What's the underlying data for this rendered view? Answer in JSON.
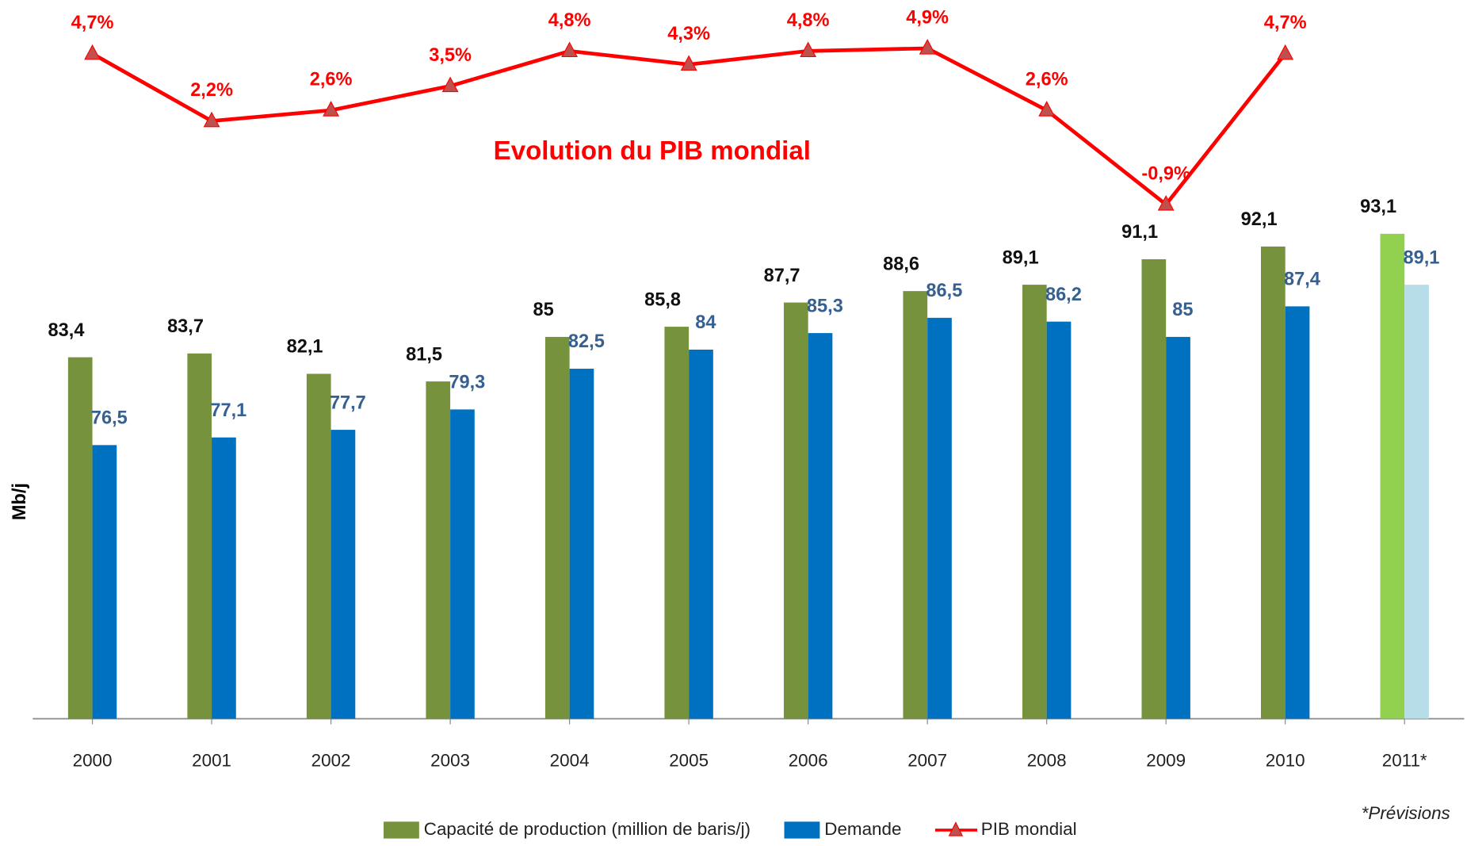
{
  "chart_data": {
    "type": "bar_line",
    "annotation_title": "Evolution du PIB mondial",
    "y_axis_label": "Mb/j",
    "footnote": "*Prévisions",
    "categories": [
      "2000",
      "2001",
      "2002",
      "2003",
      "2004",
      "2005",
      "2006",
      "2007",
      "2008",
      "2009",
      "2010",
      "2011*"
    ],
    "ylim": [
      55,
      110
    ],
    "y2lim": [
      -20,
      6
    ],
    "legend": "bottom",
    "series": [
      {
        "name": "Capacité de production (million de baris/j)",
        "type": "bar",
        "color": "#76923c",
        "point_colors": [
          "#76923c",
          "#76923c",
          "#76923c",
          "#76923c",
          "#76923c",
          "#76923c",
          "#76923c",
          "#76923c",
          "#76923c",
          "#76923c",
          "#76923c",
          "#92d050"
        ],
        "label_color": "#111111",
        "values": [
          83.4,
          83.7,
          82.1,
          81.5,
          85,
          85.8,
          87.7,
          88.6,
          89.1,
          91.1,
          92.1,
          93.1
        ],
        "value_labels": [
          "83,4",
          "83,7",
          "82,1",
          "81,5",
          "85",
          "85,8",
          "87,7",
          "88,6",
          "89,1",
          "91,1",
          "92,1",
          "93,1"
        ]
      },
      {
        "name": "Demande",
        "type": "bar",
        "color": "#0070c0",
        "point_colors": [
          "#0070c0",
          "#0070c0",
          "#0070c0",
          "#0070c0",
          "#0070c0",
          "#0070c0",
          "#0070c0",
          "#0070c0",
          "#0070c0",
          "#0070c0",
          "#0070c0",
          "#b7dee8"
        ],
        "label_color": "#366092",
        "values": [
          76.5,
          77.1,
          77.7,
          79.3,
          82.5,
          84,
          85.3,
          86.5,
          86.2,
          85,
          87.4,
          89.1
        ],
        "value_labels": [
          "76,5",
          "77,1",
          "77,7",
          "79,3",
          "82,5",
          "84",
          "85,3",
          "86,5",
          "86,2",
          "85",
          "87,4",
          "89,1"
        ]
      },
      {
        "name": "PIB mondial",
        "type": "line",
        "axis": "y2",
        "color": "#ff0000",
        "marker_color": "#c0504d",
        "label_color": "#ff0000",
        "values": [
          4.7,
          2.2,
          2.6,
          3.5,
          4.8,
          4.3,
          4.8,
          4.9,
          2.6,
          -0.9,
          4.7,
          null
        ],
        "value_labels": [
          "4,7%",
          "2,2%",
          "2,6%",
          "3,5%",
          "4,8%",
          "4,3%",
          "4,8%",
          "4,9%",
          "2,6%",
          "-0,9%",
          "4,7%",
          null
        ]
      }
    ]
  }
}
